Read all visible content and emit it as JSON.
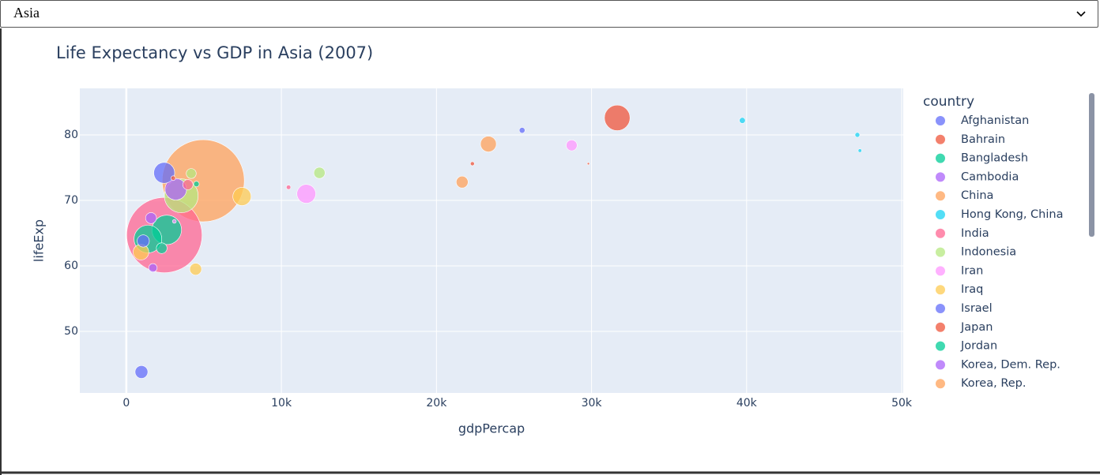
{
  "dropdown": {
    "selected": "Asia"
  },
  "chart_data": {
    "type": "bubble",
    "title": "Life Expectancy vs GDP in Asia (2007)",
    "x_label": "gdpPercap",
    "y_label": "lifeExp",
    "legend_title": "country",
    "xlim": [
      -3000,
      50100
    ],
    "ylim": [
      40.6,
      87.1
    ],
    "xticks": [
      0,
      {
        "value": 10000,
        "label": "10k"
      },
      {
        "value": 20000,
        "label": "20k"
      },
      {
        "value": 30000,
        "label": "30k"
      },
      {
        "value": 40000,
        "label": "40k"
      },
      {
        "value": 50000,
        "label": "50k"
      }
    ],
    "yticks": [
      50,
      60,
      70,
      80
    ],
    "grid": true,
    "series": [
      {
        "name": "Afghanistan",
        "color": "#636efa",
        "x": [
          975
        ],
        "values": [
          43.8
        ],
        "size": [
          31.9
        ]
      },
      {
        "name": "Bahrain",
        "color": "#EF553B",
        "x": [
          29796
        ],
        "values": [
          75.6
        ],
        "size": [
          0.7
        ]
      },
      {
        "name": "Bangladesh",
        "color": "#00cc96",
        "x": [
          1391
        ],
        "values": [
          64.1
        ],
        "size": [
          150
        ]
      },
      {
        "name": "Cambodia",
        "color": "#ab63fa",
        "x": [
          1714
        ],
        "values": [
          59.7
        ],
        "size": [
          14
        ]
      },
      {
        "name": "China",
        "color": "#FFA15A",
        "x": [
          4959
        ],
        "values": [
          73
        ],
        "size": [
          1318
        ]
      },
      {
        "name": "Hong Kong, China",
        "color": "#19d3f3",
        "x": [
          39725
        ],
        "values": [
          82.2
        ],
        "size": [
          7
        ]
      },
      {
        "name": "India",
        "color": "#FF6692",
        "x": [
          2452
        ],
        "values": [
          64.7
        ],
        "size": [
          1110
        ]
      },
      {
        "name": "Indonesia",
        "color": "#B6E880",
        "x": [
          3541
        ],
        "values": [
          70.7
        ],
        "size": [
          223.5
        ]
      },
      {
        "name": "Iran",
        "color": "#FF97FF",
        "x": [
          11606
        ],
        "values": [
          71
        ],
        "size": [
          69.5
        ]
      },
      {
        "name": "Iraq",
        "color": "#FECB52",
        "x": [
          4471
        ],
        "values": [
          59.5
        ],
        "size": [
          27.5
        ]
      },
      {
        "name": "Israel",
        "color": "#636efa",
        "x": [
          25523
        ],
        "values": [
          80.7
        ],
        "size": [
          6.4
        ]
      },
      {
        "name": "Japan",
        "color": "#EF553B",
        "x": [
          31656
        ],
        "values": [
          82.6
        ],
        "size": [
          127.5
        ]
      },
      {
        "name": "Jordan",
        "color": "#00cc96",
        "x": [
          4519
        ],
        "values": [
          72.5
        ],
        "size": [
          6
        ]
      },
      {
        "name": "Korea, Dem. Rep.",
        "color": "#ab63fa",
        "x": [
          1593
        ],
        "values": [
          67.3
        ],
        "size": [
          23.3
        ]
      },
      {
        "name": "Korea, Rep.",
        "color": "#FFA15A",
        "x": [
          23348
        ],
        "values": [
          78.6
        ],
        "size": [
          49
        ]
      },
      {
        "color": "#19d3f3",
        "x": [
          47307
        ],
        "values": [
          77.6
        ],
        "size": [
          2.5
        ]
      },
      {
        "color": "#FF6692",
        "x": [
          10461
        ],
        "values": [
          72
        ],
        "size": [
          3.9
        ]
      },
      {
        "color": "#B6E880",
        "x": [
          12452
        ],
        "values": [
          74.2
        ],
        "size": [
          24.8
        ]
      },
      {
        "color": "#FF97FF",
        "x": [
          3096
        ],
        "values": [
          66.8
        ],
        "size": [
          2.9
        ]
      },
      {
        "color": "#FECB52",
        "x": [
          944
        ],
        "values": [
          62.1
        ],
        "size": [
          47.8
        ]
      },
      {
        "color": "#636efa",
        "x": [
          1091
        ],
        "values": [
          63.8
        ],
        "size": [
          28.9
        ]
      },
      {
        "color": "#EF553B",
        "x": [
          22316
        ],
        "values": [
          75.6
        ],
        "size": [
          3.2
        ]
      },
      {
        "color": "#00cc96",
        "x": [
          2606
        ],
        "values": [
          65.5
        ],
        "size": [
          169.3
        ]
      },
      {
        "color": "#ab63fa",
        "x": [
          3190
        ],
        "values": [
          71.7
        ],
        "size": [
          91.1
        ]
      },
      {
        "color": "#FFA15A",
        "x": [
          21655
        ],
        "values": [
          72.8
        ],
        "size": [
          27.6
        ]
      },
      {
        "color": "#19d3f3",
        "x": [
          47143
        ],
        "values": [
          80
        ],
        "size": [
          4.55
        ]
      },
      {
        "color": "#FF6692",
        "x": [
          3970
        ],
        "values": [
          72.4
        ],
        "size": [
          20.4
        ]
      },
      {
        "color": "#B6E880",
        "x": [
          4185
        ],
        "values": [
          74.1
        ],
        "size": [
          19.3
        ]
      },
      {
        "color": "#FF97FF",
        "x": [
          28718
        ],
        "values": [
          78.4
        ],
        "size": [
          23.2
        ]
      },
      {
        "color": "#FECB52",
        "x": [
          7458
        ],
        "values": [
          70.6
        ],
        "size": [
          65.1
        ]
      },
      {
        "color": "#636efa",
        "x": [
          2442
        ],
        "values": [
          74.2
        ],
        "size": [
          85.3
        ]
      },
      {
        "color": "#EF553B",
        "x": [
          3025
        ],
        "values": [
          73.4
        ],
        "size": [
          4
        ]
      },
      {
        "color": "#00cc96",
        "x": [
          2281
        ],
        "values": [
          62.7
        ],
        "size": [
          22.2
        ]
      }
    ]
  }
}
